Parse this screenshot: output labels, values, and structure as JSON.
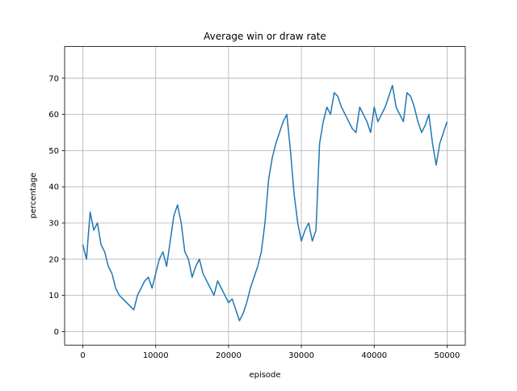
{
  "chart_data": {
    "type": "line",
    "title": "Average win or draw rate",
    "xlabel": "episode",
    "ylabel": "percentage",
    "x": [
      0,
      500,
      1000,
      1500,
      2000,
      2500,
      3000,
      3500,
      4000,
      4500,
      5000,
      5500,
      6000,
      6500,
      7000,
      7500,
      8000,
      8500,
      9000,
      9500,
      10000,
      10500,
      11000,
      11500,
      12000,
      12500,
      13000,
      13500,
      14000,
      14500,
      15000,
      15500,
      16000,
      16500,
      17000,
      17500,
      18000,
      18500,
      19000,
      19500,
      20000,
      20500,
      21000,
      21500,
      22000,
      22500,
      23000,
      23500,
      24000,
      24500,
      25000,
      25500,
      26000,
      26500,
      27000,
      27500,
      28000,
      28500,
      29000,
      29500,
      30000,
      30500,
      31000,
      31500,
      32000,
      32500,
      33000,
      33500,
      34000,
      34500,
      35000,
      35500,
      36000,
      36500,
      37000,
      37500,
      38000,
      38500,
      39000,
      39500,
      40000,
      40500,
      41000,
      41500,
      42000,
      42500,
      43000,
      43500,
      44000,
      44500,
      45000,
      45500,
      46000,
      46500,
      47000,
      47500,
      48000,
      48500,
      49000,
      49500,
      50000
    ],
    "values": [
      24,
      20,
      33,
      28,
      30,
      24,
      22,
      18,
      16,
      12,
      10,
      9,
      8,
      7,
      6,
      10,
      12,
      14,
      15,
      12,
      16,
      20,
      22,
      18,
      25,
      32,
      35,
      30,
      22,
      20,
      15,
      18,
      20,
      16,
      14,
      12,
      10,
      14,
      12,
      10,
      8,
      9,
      6,
      3,
      5,
      8,
      12,
      15,
      18,
      22,
      30,
      42,
      48,
      52,
      55,
      58,
      60,
      50,
      38,
      30,
      25,
      28,
      30,
      25,
      28,
      52,
      58,
      62,
      60,
      66,
      65,
      62,
      60,
      58,
      56,
      55,
      62,
      60,
      58,
      55,
      62,
      58,
      60,
      62,
      65,
      68,
      62,
      60,
      58,
      66,
      65,
      62,
      58,
      55,
      57,
      60,
      52,
      46,
      52,
      55,
      58
    ],
    "color": "#1f77b4",
    "xlim": [
      -2500,
      52500
    ],
    "xticks": [
      0,
      10000,
      20000,
      30000,
      40000,
      50000
    ],
    "ylim": [
      -3.75,
      78.75
    ],
    "yticks": [
      0,
      10,
      20,
      30,
      40,
      50,
      60,
      70
    ],
    "grid": true
  }
}
